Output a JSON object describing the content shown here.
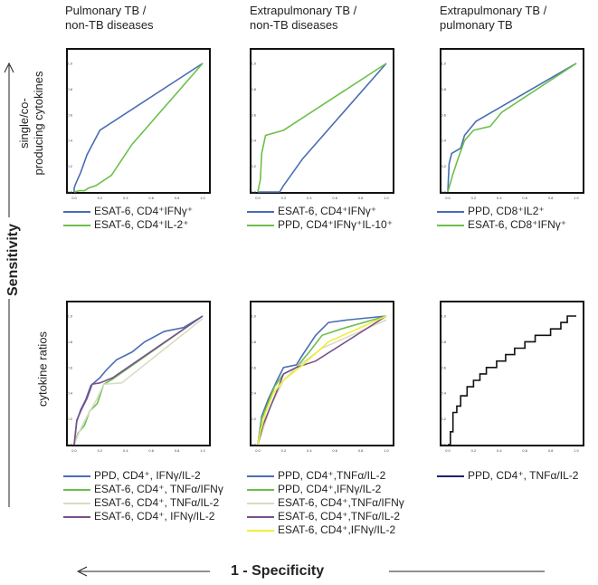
{
  "labels": {
    "y_axis": "Sensitivity",
    "x_axis": "1 - Specificity",
    "row_top": "single/co-\nproducing cytokines",
    "row_bottom": "cytokine ratios"
  },
  "columns": [
    "Pulmonary TB /\nnon-TB diseases",
    "Extrapulmonary TB /\nnon-TB diseases",
    "Extrapulmonary TB /\npulmonary TB"
  ],
  "chart_data": [
    {
      "type": "line",
      "row": "single/co-producing cytokines",
      "title": "Pulmonary TB / non-TB diseases",
      "xlim": [
        0,
        1
      ],
      "ylim": [
        0,
        1
      ],
      "ticks": [
        "0.0",
        "0.2",
        "0.4",
        "0.6",
        "0.8",
        "1.0"
      ],
      "series": [
        {
          "name": "ESAT-6, CD4⁺IFNγ⁺",
          "color": "#4a6db3",
          "points": [
            [
              0,
              0
            ],
            [
              0,
              0.03
            ],
            [
              0.01,
              0.06
            ],
            [
              0.05,
              0.15
            ],
            [
              0.1,
              0.29
            ],
            [
              0.2,
              0.48
            ],
            [
              1,
              1
            ]
          ]
        },
        {
          "name": "ESAT-6, CD4⁺IL-2⁺",
          "color": "#6cc04a",
          "points": [
            [
              0,
              0
            ],
            [
              0.04,
              0.01
            ],
            [
              0.08,
              0.01
            ],
            [
              0.11,
              0.03
            ],
            [
              0.17,
              0.05
            ],
            [
              0.29,
              0.13
            ],
            [
              0.45,
              0.37
            ],
            [
              1,
              1
            ]
          ]
        }
      ]
    },
    {
      "type": "line",
      "row": "single/co-producing cytokines",
      "title": "Extrapulmonary TB / non-TB diseases",
      "xlim": [
        0,
        1
      ],
      "ylim": [
        0,
        1
      ],
      "ticks": [
        "0.0",
        "0.2",
        "0.4",
        "0.6",
        "0.8",
        "1.0"
      ],
      "series": [
        {
          "name": "ESAT-6, CD4⁺IFNγ⁺",
          "color": "#4a6db3",
          "points": [
            [
              0,
              0
            ],
            [
              0.17,
              0
            ],
            [
              0.2,
              0.05
            ],
            [
              0.35,
              0.26
            ],
            [
              1,
              1
            ]
          ]
        },
        {
          "name": "PPD, CD4⁺IFNγ⁺IL-10⁺",
          "color": "#6cc04a",
          "points": [
            [
              0,
              0
            ],
            [
              0.02,
              0.1
            ],
            [
              0.03,
              0.3
            ],
            [
              0.06,
              0.44
            ],
            [
              0.2,
              0.48
            ],
            [
              1,
              1
            ]
          ]
        }
      ]
    },
    {
      "type": "line",
      "row": "single/co-producing cytokines",
      "title": "Extrapulmonary TB / pulmonary TB",
      "xlim": [
        0,
        1
      ],
      "ylim": [
        0,
        1
      ],
      "ticks": [
        "0.0",
        "0.2",
        "0.4",
        "0.6",
        "0.8",
        "1.0"
      ],
      "series": [
        {
          "name": "PPD, CD8⁺IL2⁺",
          "color": "#4a6db3",
          "points": [
            [
              0,
              0
            ],
            [
              0.01,
              0.22
            ],
            [
              0.03,
              0.3
            ],
            [
              0.1,
              0.34
            ],
            [
              0.13,
              0.44
            ],
            [
              0.22,
              0.55
            ],
            [
              1,
              1
            ]
          ]
        },
        {
          "name": "ESAT-6, CD8⁺IFNγ⁺",
          "color": "#6cc04a",
          "points": [
            [
              0,
              0
            ],
            [
              0.04,
              0.14
            ],
            [
              0.08,
              0.26
            ],
            [
              0.13,
              0.4
            ],
            [
              0.2,
              0.48
            ],
            [
              0.33,
              0.51
            ],
            [
              0.42,
              0.62
            ],
            [
              1,
              1
            ]
          ]
        }
      ]
    },
    {
      "type": "line",
      "row": "cytokine ratios",
      "title": "Pulmonary TB / non-TB diseases",
      "xlim": [
        0,
        1
      ],
      "ylim": [
        0,
        1
      ],
      "ticks": [
        "0.0",
        "0.2",
        "0.4",
        "0.6",
        "0.8",
        "1.0"
      ],
      "series": [
        {
          "name": "PPD, CD4⁺, IFNγ/IL-2",
          "color": "#4a6db3",
          "points": [
            [
              0,
              0
            ],
            [
              0.02,
              0.18
            ],
            [
              0.05,
              0.27
            ],
            [
              0.09,
              0.35
            ],
            [
              0.13,
              0.46
            ],
            [
              0.2,
              0.52
            ],
            [
              0.25,
              0.58
            ],
            [
              0.33,
              0.66
            ],
            [
              0.45,
              0.72
            ],
            [
              0.55,
              0.8
            ],
            [
              0.7,
              0.88
            ],
            [
              0.85,
              0.91
            ],
            [
              1,
              1
            ]
          ]
        },
        {
          "name": "ESAT-6, CD4⁺, TNFα/IFNγ",
          "color": "#6cc04a",
          "points": [
            [
              0,
              0
            ],
            [
              0.03,
              0.09
            ],
            [
              0.08,
              0.15
            ],
            [
              0.12,
              0.26
            ],
            [
              0.18,
              0.32
            ],
            [
              0.23,
              0.47
            ],
            [
              0.3,
              0.51
            ],
            [
              1,
              1
            ]
          ]
        },
        {
          "name": "ESAT-6, CD4⁺, TNFα/IL-2",
          "color": "#d8dcc4",
          "points": [
            [
              0,
              0
            ],
            [
              0.04,
              0.1
            ],
            [
              0.1,
              0.22
            ],
            [
              0.18,
              0.36
            ],
            [
              0.23,
              0.47
            ],
            [
              0.37,
              0.48
            ],
            [
              1,
              0.98
            ]
          ]
        },
        {
          "name": "ESAT-6, CD4⁺, IFNγ/IL-2",
          "color": "#7b4f8e",
          "points": [
            [
              0,
              0
            ],
            [
              0.02,
              0.19
            ],
            [
              0.06,
              0.28
            ],
            [
              0.1,
              0.36
            ],
            [
              0.14,
              0.47
            ],
            [
              0.2,
              0.48
            ],
            [
              0.3,
              0.52
            ],
            [
              1,
              1
            ]
          ]
        }
      ]
    },
    {
      "type": "line",
      "row": "cytokine ratios",
      "title": "Extrapulmonary TB / non-TB diseases",
      "xlim": [
        0,
        1
      ],
      "ylim": [
        0,
        1
      ],
      "ticks": [
        "0.0",
        "0.2",
        "0.4",
        "0.6",
        "0.8",
        "1.0"
      ],
      "series": [
        {
          "name": "PPD, CD4⁺,TNFα/IL-2",
          "color": "#4a6db3",
          "points": [
            [
              0,
              0
            ],
            [
              0.03,
              0.22
            ],
            [
              0.08,
              0.35
            ],
            [
              0.15,
              0.5
            ],
            [
              0.2,
              0.6
            ],
            [
              0.3,
              0.62
            ],
            [
              0.35,
              0.7
            ],
            [
              0.45,
              0.85
            ],
            [
              0.55,
              0.95
            ],
            [
              0.7,
              0.97
            ],
            [
              1,
              1
            ]
          ]
        },
        {
          "name": "PPD, CD4⁺,IFNγ/IL-2",
          "color": "#6cc04a",
          "points": [
            [
              0,
              0
            ],
            [
              0.03,
              0.2
            ],
            [
              0.07,
              0.3
            ],
            [
              0.13,
              0.45
            ],
            [
              0.2,
              0.55
            ],
            [
              0.3,
              0.6
            ],
            [
              0.4,
              0.72
            ],
            [
              0.5,
              0.85
            ],
            [
              0.65,
              0.9
            ],
            [
              1,
              1
            ]
          ]
        },
        {
          "name": "ESAT-6, CD4⁺,TNFα/IFNγ",
          "color": "#d8dcc4",
          "points": [
            [
              0,
              0
            ],
            [
              0.05,
              0.15
            ],
            [
              0.1,
              0.3
            ],
            [
              0.2,
              0.5
            ],
            [
              0.3,
              0.6
            ],
            [
              0.5,
              0.75
            ],
            [
              1,
              0.97
            ]
          ]
        },
        {
          "name": "ESAT-6, CD4⁺,TNFα/IL-2",
          "color": "#7b4f8e",
          "points": [
            [
              0,
              0
            ],
            [
              0.04,
              0.15
            ],
            [
              0.1,
              0.3
            ],
            [
              0.15,
              0.42
            ],
            [
              0.2,
              0.55
            ],
            [
              0.3,
              0.6
            ],
            [
              0.45,
              0.65
            ],
            [
              1,
              1
            ]
          ]
        },
        {
          "name": "ESAT-6, CD4⁺,IFNγ/IL-2",
          "color": "#f2ee3a",
          "points": [
            [
              0,
              0
            ],
            [
              0.02,
              0.1
            ],
            [
              0.06,
              0.25
            ],
            [
              0.12,
              0.4
            ],
            [
              0.2,
              0.5
            ],
            [
              0.35,
              0.62
            ],
            [
              0.55,
              0.8
            ],
            [
              1,
              1
            ]
          ]
        }
      ]
    },
    {
      "type": "line",
      "row": "cytokine ratios",
      "title": "Extrapulmonary TB / pulmonary TB",
      "xlim": [
        0,
        1
      ],
      "ylim": [
        0,
        1
      ],
      "ticks": [
        "0.0",
        "0.2",
        "0.4",
        "0.6",
        "0.8",
        "1.0"
      ],
      "series": [
        {
          "name": "PPD, CD4⁺, TNFα/IL-2",
          "color": "#1a2466",
          "points": [
            [
              0,
              0
            ],
            [
              0.02,
              0
            ],
            [
              0.02,
              0.1
            ],
            [
              0.04,
              0.1
            ],
            [
              0.04,
              0.25
            ],
            [
              0.07,
              0.25
            ],
            [
              0.07,
              0.3
            ],
            [
              0.1,
              0.3
            ],
            [
              0.1,
              0.38
            ],
            [
              0.15,
              0.38
            ],
            [
              0.15,
              0.45
            ],
            [
              0.2,
              0.45
            ],
            [
              0.2,
              0.5
            ],
            [
              0.25,
              0.5
            ],
            [
              0.25,
              0.55
            ],
            [
              0.3,
              0.55
            ],
            [
              0.3,
              0.6
            ],
            [
              0.38,
              0.6
            ],
            [
              0.38,
              0.65
            ],
            [
              0.45,
              0.65
            ],
            [
              0.45,
              0.7
            ],
            [
              0.52,
              0.7
            ],
            [
              0.52,
              0.75
            ],
            [
              0.6,
              0.75
            ],
            [
              0.6,
              0.8
            ],
            [
              0.68,
              0.8
            ],
            [
              0.68,
              0.85
            ],
            [
              0.8,
              0.85
            ],
            [
              0.8,
              0.9
            ],
            [
              0.88,
              0.9
            ],
            [
              0.88,
              0.95
            ],
            [
              0.93,
              0.95
            ],
            [
              0.93,
              1
            ],
            [
              1,
              1
            ]
          ]
        }
      ]
    }
  ]
}
